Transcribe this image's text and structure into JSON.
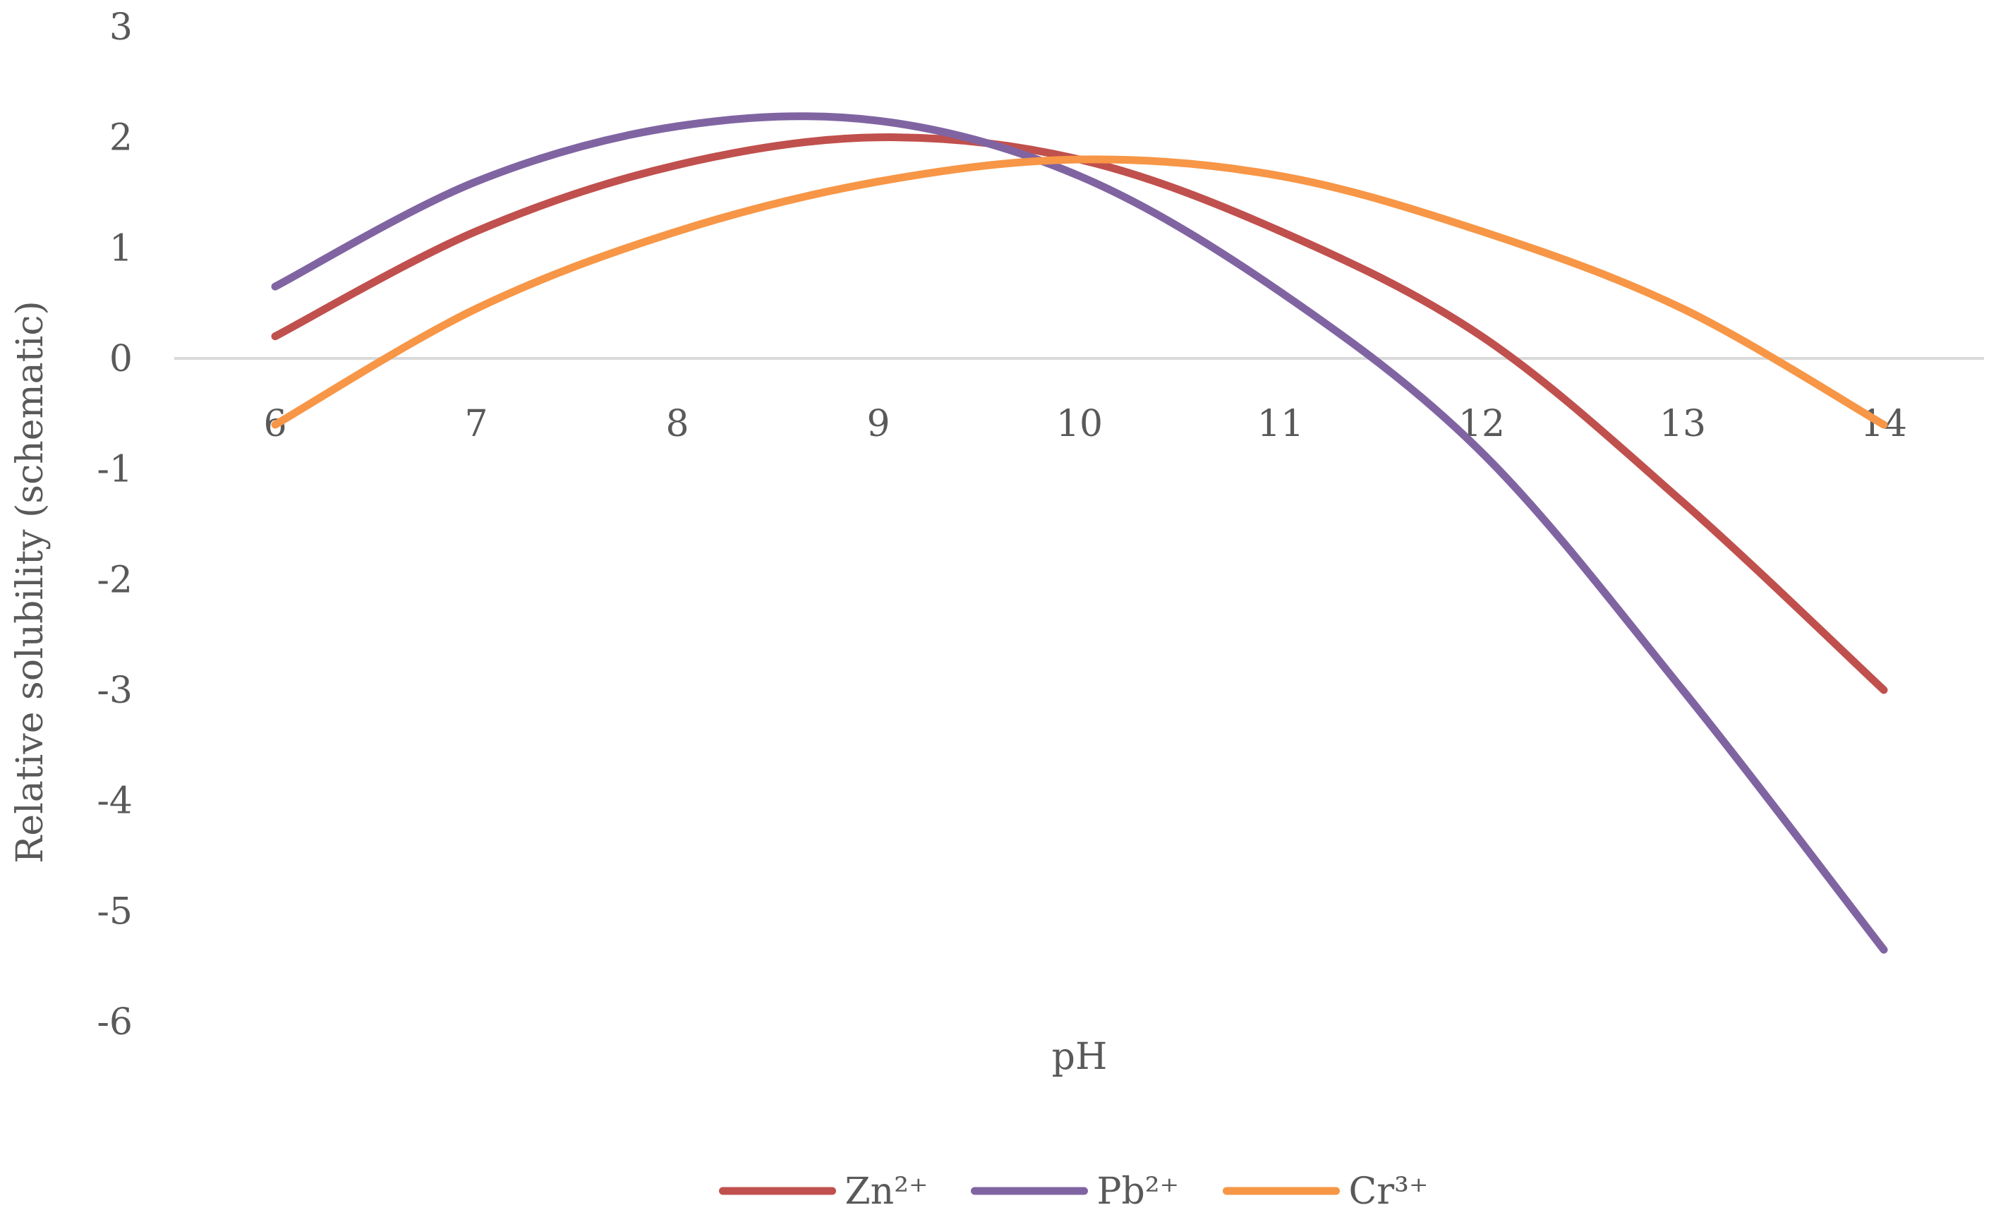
{
  "chart_data": {
    "type": "line",
    "title": "",
    "xlabel": "pH",
    "ylabel": "Relative solubility (schematic)",
    "x": [
      6,
      7,
      8,
      9,
      10,
      11,
      12,
      13,
      14
    ],
    "x_ticks": [
      "6",
      "7",
      "8",
      "9",
      "10",
      "11",
      "12",
      "13",
      "14"
    ],
    "ylim": [
      -6,
      3
    ],
    "y_ticks": [
      "3",
      "2",
      "1",
      "0",
      "-1",
      "-2",
      "-3",
      "-4",
      "-5",
      "-6"
    ],
    "grid": false,
    "zero_line": true,
    "smooth": true,
    "legend_position": "bottom",
    "series": [
      {
        "name": "Zn²⁺",
        "color": "#C0504D",
        "values": [
          0.2,
          1.15,
          1.75,
          2.0,
          1.8,
          1.15,
          0.2,
          -1.3,
          -3.0
        ]
      },
      {
        "name": "Pb²⁺",
        "color": "#8064A2",
        "values": [
          0.65,
          1.6,
          2.1,
          2.15,
          1.65,
          0.6,
          -0.85,
          -3.0,
          -5.35
        ]
      },
      {
        "name": "Cr³⁺",
        "color": "#F79646",
        "values": [
          -0.6,
          0.45,
          1.15,
          1.6,
          1.8,
          1.65,
          1.15,
          0.45,
          -0.6
        ]
      }
    ]
  }
}
